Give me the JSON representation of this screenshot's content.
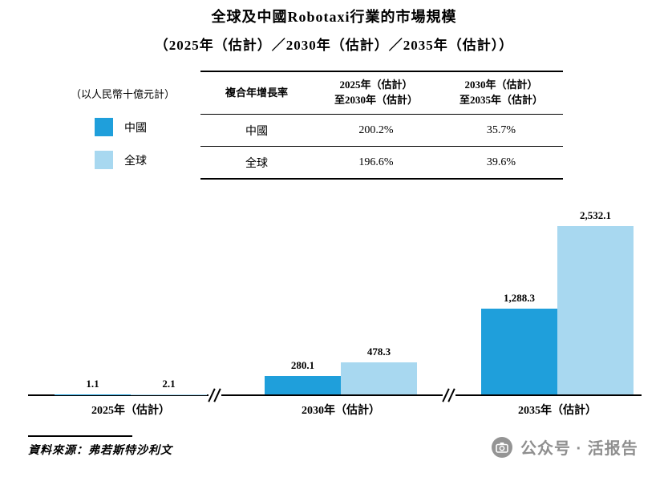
{
  "title": "全球及中國Robotaxi行業的市場規模",
  "subtitle": "（2025年（估計）／2030年（估計）／2035年（估計））",
  "unit_label": "（以人民幣十億元計）",
  "colors": {
    "china": "#1f9fdb",
    "global": "#a8d8f0"
  },
  "legend": [
    {
      "label": "中國",
      "color": "#1f9fdb"
    },
    {
      "label": "全球",
      "color": "#a8d8f0"
    }
  ],
  "table": {
    "header": [
      "複合年增長率",
      "2025年（估計）\n至2030年（估計）",
      "2030年（估計）\n至2035年（估計）"
    ],
    "rows": [
      [
        "中國",
        "200.2%",
        "35.7%"
      ],
      [
        "全球",
        "196.6%",
        "39.6%"
      ]
    ]
  },
  "chart_data": {
    "type": "bar",
    "categories": [
      "2025年（估計）",
      "2030年（估計）",
      "2035年（估計）"
    ],
    "series": [
      {
        "name": "中國",
        "color": "#1f9fdb",
        "values": [
          1.1,
          280.1,
          1288.3
        ]
      },
      {
        "name": "全球",
        "color": "#a8d8f0",
        "values": [
          2.1,
          478.3,
          2532.1
        ]
      }
    ],
    "value_labels": [
      [
        "1.1",
        "2.1"
      ],
      [
        "280.1",
        "478.3"
      ],
      [
        "1,288.3",
        "2,532.1"
      ]
    ],
    "ylabel": "以人民幣十億元計",
    "ylim": [
      0,
      2700
    ],
    "grid": false,
    "legend_position": "top-left",
    "axis_breaks": true
  },
  "source": "資料來源：弗若斯特沙利文",
  "watermark": "公众号 · 活报告"
}
